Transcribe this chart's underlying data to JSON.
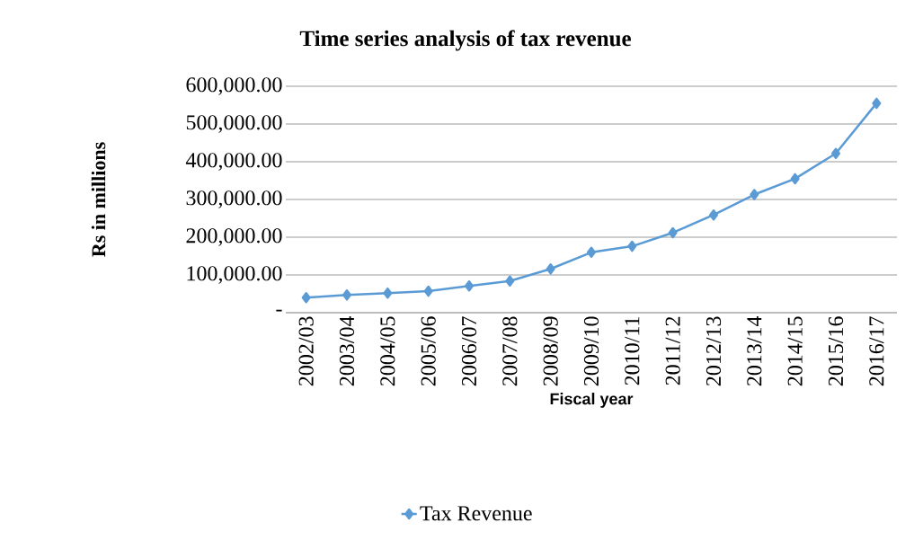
{
  "chart_data": {
    "type": "line",
    "title": "Time series analysis of tax revenue",
    "xlabel": "Fiscal year",
    "ylabel": "Rs in millions",
    "categories": [
      "2002/03",
      "2003/04",
      "2004/05",
      "2005/06",
      "2006/07",
      "2007/08",
      "2008/09",
      "2009/10",
      "2010/11",
      "2011/12",
      "2012/13",
      "2013/14",
      "2014/15",
      "2015/16",
      "2016/17"
    ],
    "series": [
      {
        "name": "Tax Revenue",
        "color": "#5b9bd5",
        "values": [
          40000,
          47000,
          52000,
          57000,
          71000,
          84000,
          116000,
          160000,
          176000,
          212000,
          259000,
          313000,
          355000,
          422000,
          555000
        ]
      }
    ],
    "ylim": [
      0,
      600000
    ],
    "yticks": [
      {
        "value": 0,
        "label": "-"
      },
      {
        "value": 100000,
        "label": "100,000.00"
      },
      {
        "value": 200000,
        "label": "200,000.00"
      },
      {
        "value": 300000,
        "label": "300,000.00"
      },
      {
        "value": 400000,
        "label": "400,000.00"
      },
      {
        "value": 500000,
        "label": "500,000.00"
      },
      {
        "value": 600000,
        "label": "600,000.00"
      }
    ],
    "grid": "y",
    "legend": "bottom",
    "marker": "diamond",
    "line_style": "solid"
  }
}
